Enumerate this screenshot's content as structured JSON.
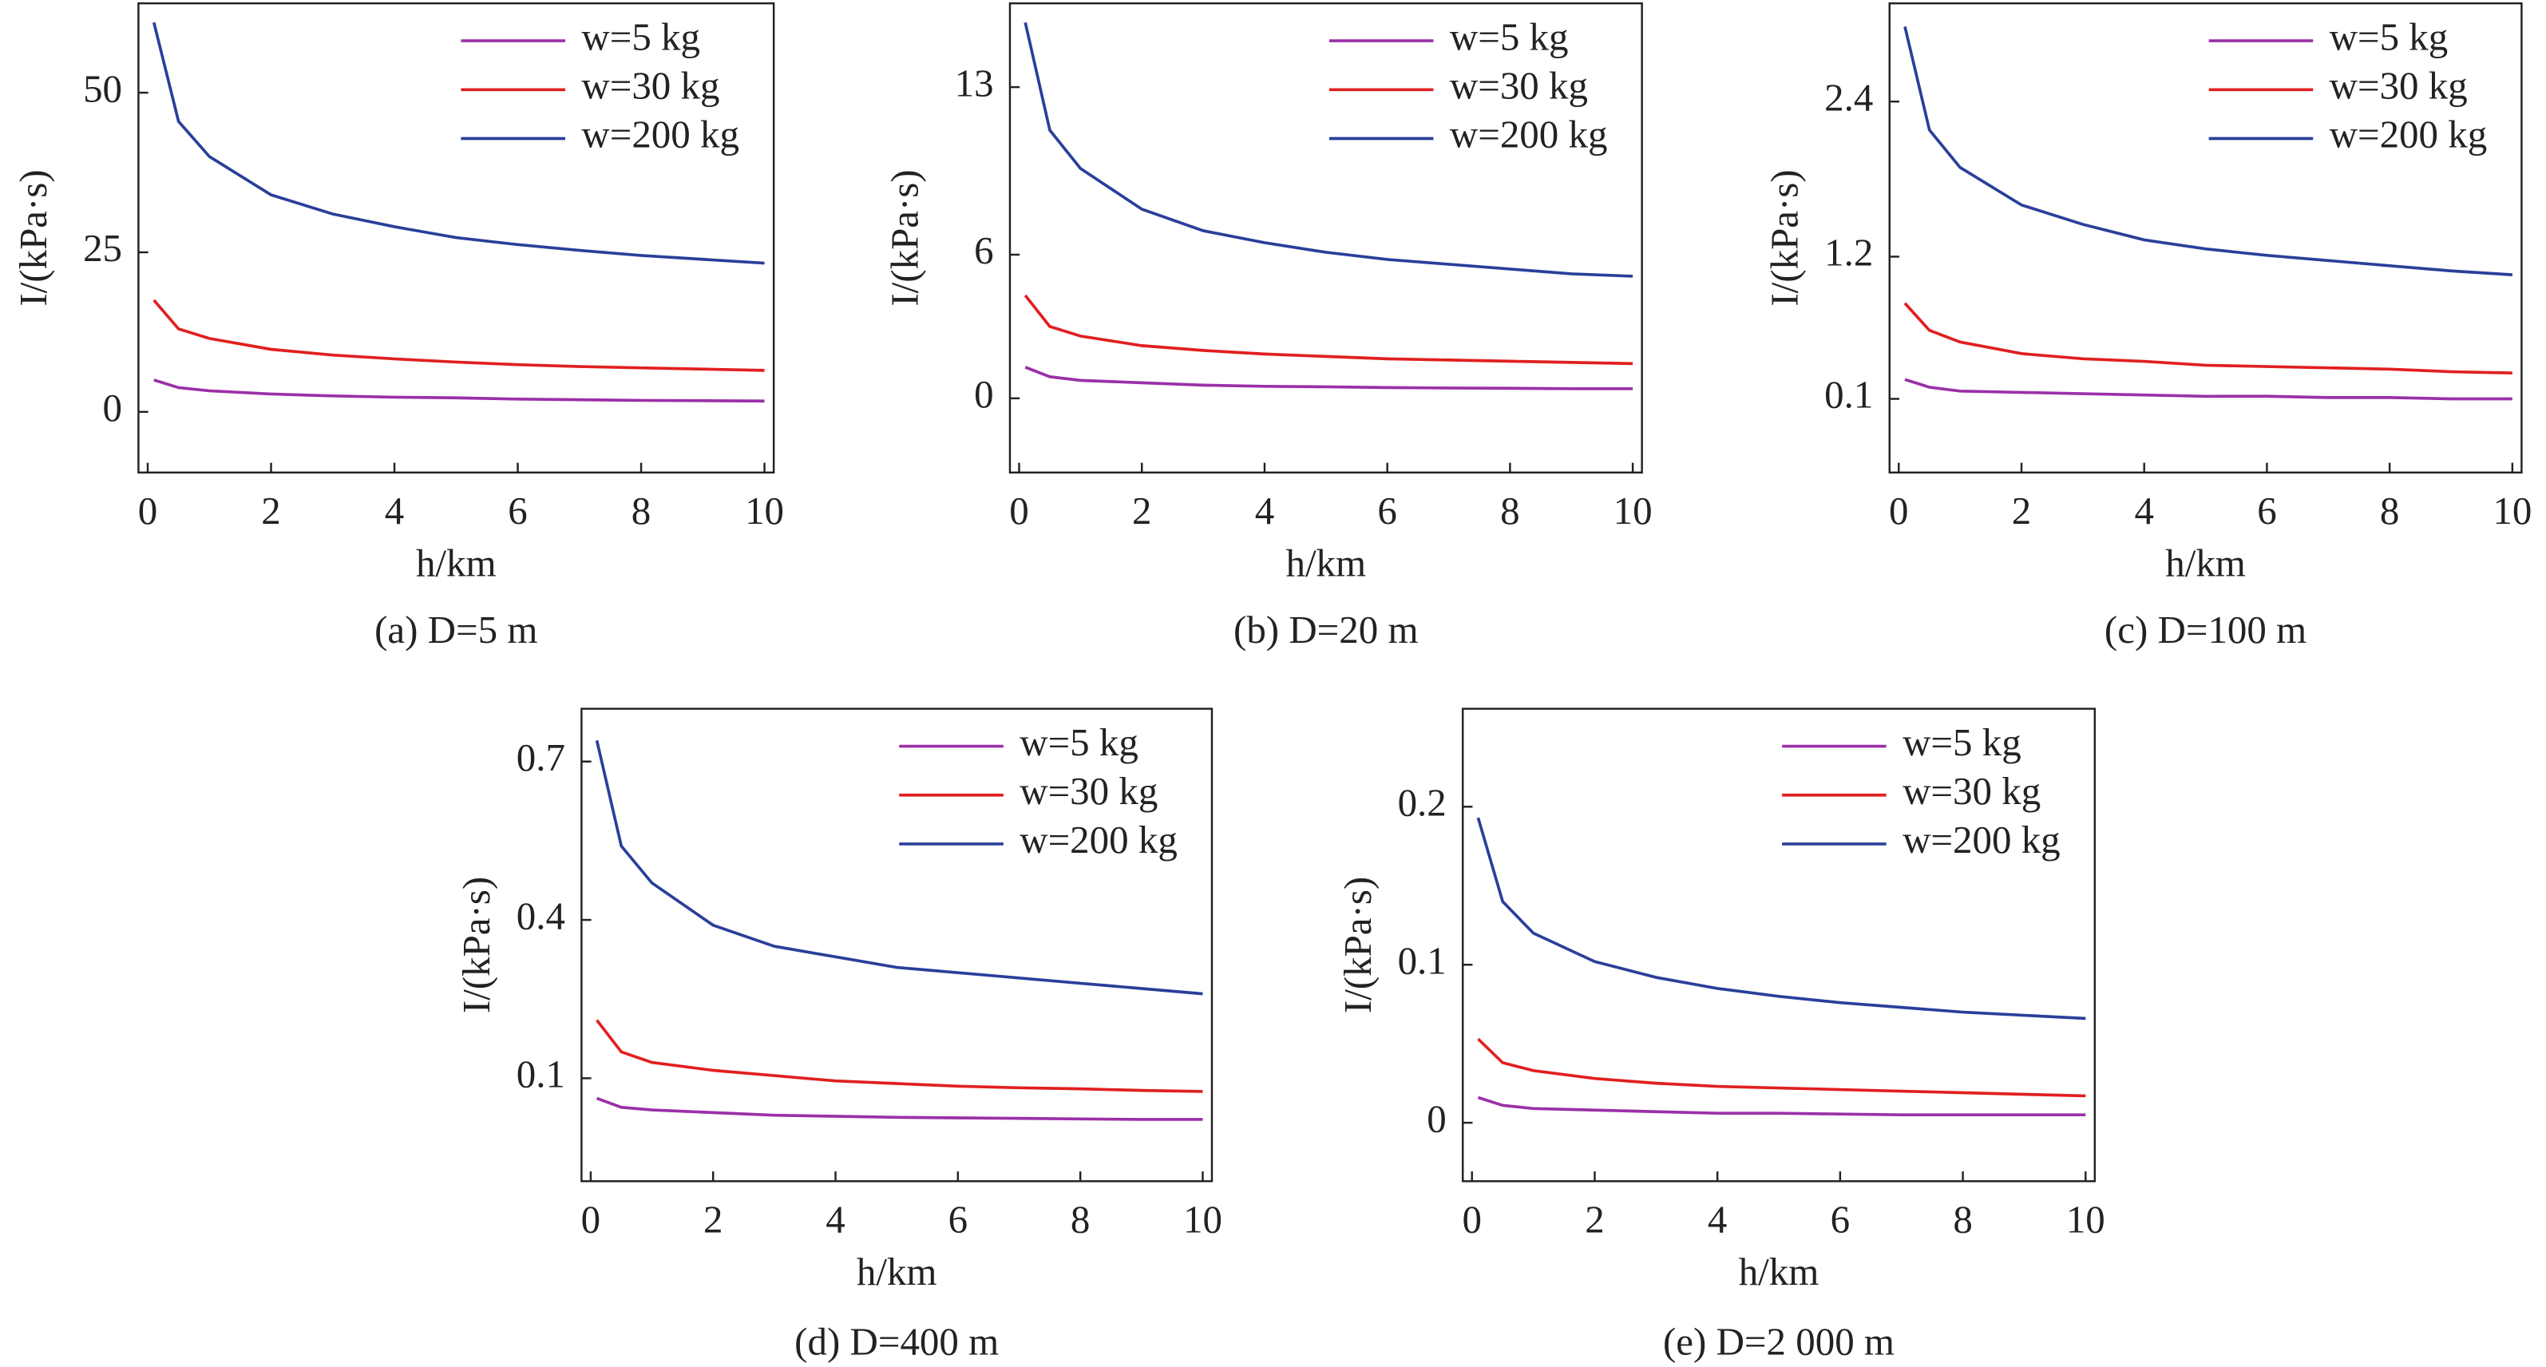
{
  "chart_data": [
    {
      "type": "line",
      "caption": "(a) D=5 m",
      "xlabel": "h/km",
      "ylabel": "I/(kPa·s)",
      "x": [
        0.1,
        0.5,
        1,
        2,
        3,
        4,
        5,
        6,
        7,
        8,
        9,
        10
      ],
      "xlim": [
        -0.15,
        10.15
      ],
      "xticks": [
        0,
        2,
        4,
        6,
        8,
        10
      ],
      "ylim": [
        -9.5,
        64
      ],
      "yticks": [
        0,
        25,
        50
      ],
      "series": [
        {
          "name": "w=5 kg",
          "color": "#9b30a8",
          "values": [
            5,
            3.8,
            3.3,
            2.8,
            2.5,
            2.3,
            2.2,
            2.0,
            1.9,
            1.8,
            1.75,
            1.7
          ]
        },
        {
          "name": "w=30 kg",
          "color": "#e0201f",
          "values": [
            17.5,
            13,
            11.5,
            9.8,
            8.9,
            8.3,
            7.8,
            7.4,
            7.1,
            6.9,
            6.7,
            6.5
          ]
        },
        {
          "name": "w=200 kg",
          "color": "#2a3f9a",
          "values": [
            61,
            45.5,
            40,
            34,
            31,
            29,
            27.3,
            26.2,
            25.3,
            24.5,
            23.9,
            23.3
          ]
        }
      ]
    },
    {
      "type": "line",
      "caption": "(b) D=20 m",
      "xlabel": "h/km",
      "ylabel": "I/(kPa·s)",
      "x": [
        0.1,
        0.5,
        1,
        2,
        3,
        4,
        5,
        6,
        7,
        8,
        9,
        10
      ],
      "xlim": [
        -0.15,
        10.15
      ],
      "xticks": [
        0,
        2,
        4,
        6,
        8,
        10
      ],
      "ylim": [
        -3.1,
        16.5
      ],
      "yticks": [
        0,
        6,
        13
      ],
      "series": [
        {
          "name": "w=5 kg",
          "color": "#9b30a8",
          "values": [
            1.3,
            0.9,
            0.75,
            0.65,
            0.55,
            0.5,
            0.48,
            0.45,
            0.43,
            0.42,
            0.4,
            0.4
          ]
        },
        {
          "name": "w=30 kg",
          "color": "#e0201f",
          "values": [
            4.3,
            3.0,
            2.6,
            2.2,
            2.0,
            1.85,
            1.75,
            1.65,
            1.6,
            1.55,
            1.5,
            1.45
          ]
        },
        {
          "name": "w=200 kg",
          "color": "#2a3f9a",
          "values": [
            15.7,
            11.2,
            9.6,
            7.9,
            7.0,
            6.5,
            6.1,
            5.8,
            5.6,
            5.4,
            5.2,
            5.1
          ]
        }
      ]
    },
    {
      "type": "line",
      "caption": "(c) D=100 m",
      "xlabel": "h/km",
      "ylabel": "I/(kPa·s)",
      "x": [
        0.1,
        0.5,
        1,
        2,
        3,
        4,
        5,
        6,
        7,
        8,
        9,
        10
      ],
      "xlim": [
        -0.15,
        10.15
      ],
      "xticks": [
        0,
        2,
        4,
        6,
        8,
        10
      ],
      "ylim": [
        -0.47,
        3.16
      ],
      "yticks": [
        0.1,
        1.2,
        2.4
      ],
      "series": [
        {
          "name": "w=5 kg",
          "color": "#9b30a8",
          "values": [
            0.25,
            0.19,
            0.16,
            0.15,
            0.14,
            0.13,
            0.12,
            0.12,
            0.11,
            0.11,
            0.1,
            0.1
          ]
        },
        {
          "name": "w=30 kg",
          "color": "#e0201f",
          "values": [
            0.84,
            0.63,
            0.54,
            0.45,
            0.41,
            0.39,
            0.36,
            0.35,
            0.34,
            0.33,
            0.31,
            0.3
          ]
        },
        {
          "name": "w=200 kg",
          "color": "#2a3f9a",
          "values": [
            2.98,
            2.18,
            1.89,
            1.6,
            1.45,
            1.33,
            1.26,
            1.21,
            1.17,
            1.13,
            1.09,
            1.06
          ]
        }
      ]
    },
    {
      "type": "line",
      "caption": "(d) D=400 m",
      "xlabel": "h/km",
      "ylabel": "I/(kPa·s)",
      "x": [
        0.1,
        0.5,
        1,
        2,
        3,
        4,
        5,
        6,
        7,
        8,
        9,
        10
      ],
      "xlim": [
        -0.15,
        10.15
      ],
      "xticks": [
        0,
        2,
        4,
        6,
        8,
        10
      ],
      "ylim": [
        -0.095,
        0.8
      ],
      "yticks": [
        0.1,
        0.4,
        0.7
      ],
      "series": [
        {
          "name": "w=5 kg",
          "color": "#9b30a8",
          "values": [
            0.062,
            0.045,
            0.04,
            0.035,
            0.03,
            0.028,
            0.026,
            0.025,
            0.024,
            0.023,
            0.022,
            0.022
          ]
        },
        {
          "name": "w=30 kg",
          "color": "#e0201f",
          "values": [
            0.21,
            0.15,
            0.13,
            0.115,
            0.105,
            0.095,
            0.09,
            0.085,
            0.082,
            0.08,
            0.077,
            0.075
          ]
        },
        {
          "name": "w=200 kg",
          "color": "#2a3f9a",
          "values": [
            0.74,
            0.54,
            0.47,
            0.39,
            0.35,
            0.33,
            0.31,
            0.3,
            0.29,
            0.28,
            0.27,
            0.26
          ]
        }
      ]
    },
    {
      "type": "line",
      "caption": "(e) D=2 000 m",
      "xlabel": "h/km",
      "ylabel": "I/(kPa·s)",
      "x": [
        0.1,
        0.5,
        1,
        2,
        3,
        4,
        5,
        6,
        7,
        8,
        9,
        10
      ],
      "xlim": [
        -0.15,
        10.15
      ],
      "xticks": [
        0,
        2,
        4,
        6,
        8,
        10
      ],
      "ylim": [
        -0.037,
        0.262
      ],
      "yticks": [
        0,
        0.1,
        0.2
      ],
      "series": [
        {
          "name": "w=5 kg",
          "color": "#9b30a8",
          "values": [
            0.016,
            0.011,
            0.009,
            0.008,
            0.007,
            0.006,
            0.006,
            0.0055,
            0.005,
            0.005,
            0.005,
            0.005
          ]
        },
        {
          "name": "w=30 kg",
          "color": "#e0201f",
          "values": [
            0.053,
            0.038,
            0.033,
            0.028,
            0.025,
            0.023,
            0.022,
            0.021,
            0.02,
            0.019,
            0.018,
            0.017
          ]
        },
        {
          "name": "w=200 kg",
          "color": "#2a3f9a",
          "values": [
            0.193,
            0.14,
            0.12,
            0.102,
            0.092,
            0.085,
            0.08,
            0.076,
            0.073,
            0.07,
            0.068,
            0.066
          ]
        }
      ]
    }
  ]
}
